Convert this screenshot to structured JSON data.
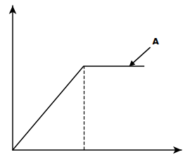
{
  "chart_data": {
    "type": "line",
    "x": [
      0,
      4.2,
      7.8
    ],
    "values": [
      0,
      5.8,
      5.8
    ],
    "color": "#000000",
    "xlim": [
      0,
      10
    ],
    "ylim": [
      0,
      10
    ],
    "tick_labels": false,
    "grid": false,
    "annotations": [
      {
        "text": "A",
        "x": 6.9,
        "y": 5.8
      }
    ]
  }
}
